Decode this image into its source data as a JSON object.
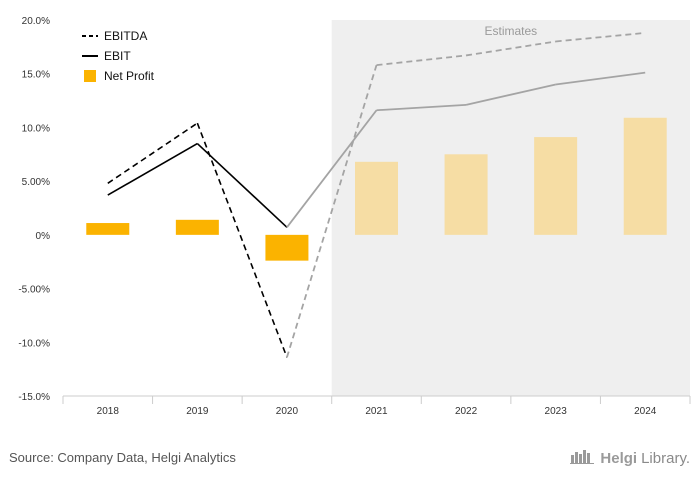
{
  "chart_data": {
    "type": "bar",
    "categories": [
      "2018",
      "2019",
      "2020",
      "2021",
      "2022",
      "2023",
      "2024"
    ],
    "ylim": [
      -15,
      20
    ],
    "yticks": [
      20,
      15,
      10,
      5,
      0,
      -5,
      -10,
      -15
    ],
    "ytick_labels": [
      "20.0%",
      "15.0%",
      "10.0%",
      "5.00%",
      "0%",
      "-5.00%",
      "-10.0%",
      "-15.0%"
    ],
    "estimates_from_index": 3,
    "estimates_label": "Estimates",
    "series": [
      {
        "name": "EBITDA",
        "kind": "line",
        "style": "dashed",
        "values": [
          4.8,
          10.4,
          -11.4,
          15.8,
          16.7,
          18.0,
          18.8
        ]
      },
      {
        "name": "EBIT",
        "kind": "line",
        "style": "solid",
        "values": [
          3.7,
          8.5,
          0.7,
          11.6,
          12.1,
          14.0,
          15.1
        ]
      },
      {
        "name": "Net Profit",
        "kind": "bar",
        "values": [
          1.1,
          1.4,
          -2.4,
          6.8,
          7.5,
          9.1,
          10.9
        ]
      }
    ],
    "legend_position": "top-left",
    "grid": false
  },
  "colors": {
    "bar": "#FBB300",
    "bar_estimate": "#F6DDA4",
    "line": "#000000",
    "line_estimate": "#A4A4A4",
    "estimate_band": "#EFEFEF",
    "axis": "#CCCCCC",
    "tick_text": "#333333"
  },
  "footer": {
    "source": "Source: Company Data, Helgi Analytics",
    "brand_a": "Helgi",
    "brand_b": "Library."
  }
}
